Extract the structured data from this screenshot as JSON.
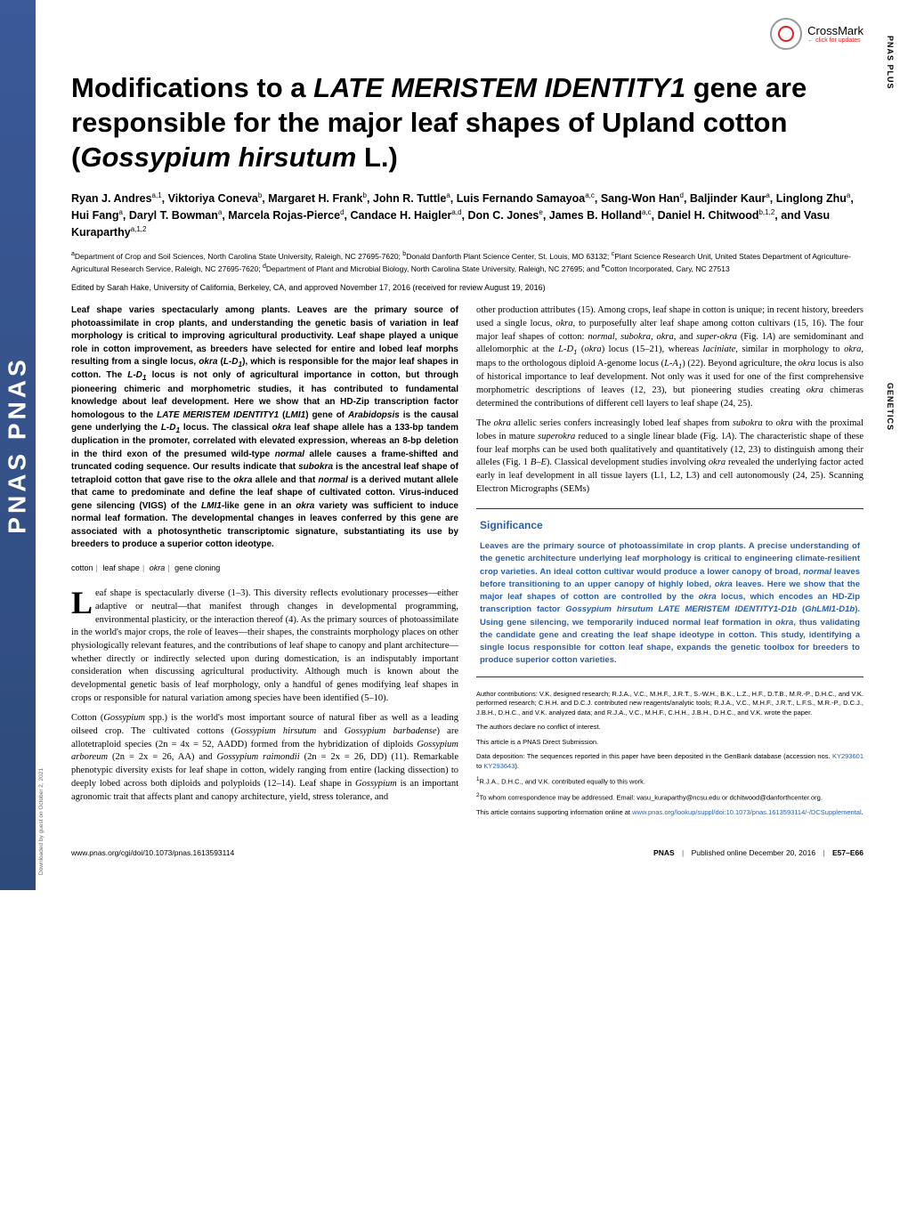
{
  "crossmark": {
    "label": "CrossMark",
    "sub": "← click for updates"
  },
  "vertical_labels": {
    "top": "PNAS PLUS",
    "mid": "GENETICS"
  },
  "sidebar": "PNAS   PNAS",
  "title_html": "Modifications to a <span class='italic'>LATE MERISTEM IDENTITY1</span> gene are responsible for the major leaf shapes of Upland cotton (<span class='italic'>Gossypium hirsutum</span> L.)",
  "authors_html": "Ryan J. Andres<sup>a,1</sup>, Viktoriya Coneva<sup>b</sup>, Margaret H. Frank<sup>b</sup>, John R. Tuttle<sup>a</sup>, Luis Fernando Samayoa<sup>a,c</sup>, Sang-Won Han<sup>d</sup>, Baljinder Kaur<sup>a</sup>, Linglong Zhu<sup>a</sup>, Hui Fang<sup>a</sup>, Daryl T. Bowman<sup>a</sup>, Marcela Rojas-Pierce<sup>d</sup>, Candace H. Haigler<sup>a,d</sup>, Don C. Jones<sup>e</sup>, James B. Holland<sup>a,c</sup>, Daniel H. Chitwood<sup>b,1,2</sup>, and Vasu Kuraparthy<sup>a,1,2</sup>",
  "affiliations_html": "<sup>a</sup>Department of Crop and Soil Sciences, North Carolina State University, Raleigh, NC 27695-7620; <sup>b</sup>Donald Danforth Plant Science Center, St. Louis, MO 63132; <sup>c</sup>Plant Science Research Unit, United States Department of Agriculture-Agricultural Research Service, Raleigh, NC 27695-7620; <sup>d</sup>Department of Plant and Microbial Biology, North Carolina State University, Raleigh, NC 27695; and <sup>e</sup>Cotton Incorporated, Cary, NC 27513",
  "edited": "Edited by Sarah Hake, University of California, Berkeley, CA, and approved November 17, 2016 (received for review August 19, 2016)",
  "abstract_html": "Leaf shape varies spectacularly among plants. Leaves are the primary source of photoassimilate in crop plants, and understanding the genetic basis of variation in leaf morphology is critical to improving agricultural productivity. Leaf shape played a unique role in cotton improvement, as breeders have selected for entire and lobed leaf morphs resulting from a single locus, <span class='italic'>okra</span> (<span class='italic'>L-D<sub>1</sub></span>), which is responsible for the major leaf shapes in cotton. The <span class='italic'>L-D<sub>1</sub></span> locus is not only of agricultural importance in cotton, but through pioneering chimeric and morphometric studies, it has contributed to fundamental knowledge about leaf development. Here we show that an HD-Zip transcription factor homologous to the <span class='italic'>LATE MERISTEM IDENTITY1</span> (<span class='italic'>LMI1</span>) gene of <span class='italic'>Arabidopsis</span> is the causal gene underlying the <span class='italic'>L-D<sub>1</sub></span> locus. The classical <span class='italic'>okra</span> leaf shape allele has a 133-bp tandem duplication in the promoter, correlated with elevated expression, whereas an 8-bp deletion in the third exon of the presumed wild-type <span class='italic'>normal</span> allele causes a frame-shifted and truncated coding sequence. Our results indicate that <span class='italic'>subokra</span> is the ancestral leaf shape of tetraploid cotton that gave rise to the <span class='italic'>okra</span> allele and that <span class='italic'>normal</span> is a derived mutant allele that came to predominate and define the leaf shape of cultivated cotton. Virus-induced gene silencing (VIGS) of the <span class='italic'>LMI1</span>-like gene in an <span class='italic'>okra</span> variety was sufficient to induce normal leaf formation. The developmental changes in leaves conferred by this gene are associated with a photosynthetic transcriptomic signature, substantiating its use by breeders to produce a superior cotton ideotype.",
  "keywords": [
    "cotton",
    "leaf shape",
    "okra",
    "gene cloning"
  ],
  "body_p1_html": "eaf shape is spectacularly diverse (1–3). This diversity reflects evolutionary processes—either adaptive or neutral—that manifest through changes in developmental programming, environmental plasticity, or the interaction thereof (4). As the primary sources of photoassimilate in the world's major crops, the role of leaves—their shapes, the constraints morphology places on other physiologically relevant features, and the contributions of leaf shape to canopy and plant architecture—whether directly or indirectly selected upon during domestication, is an indisputably important consideration when discussing agricultural productivity. Although much is known about the developmental genetic basis of leaf morphology, only a handful of genes modifying leaf shapes in crops or responsible for natural variation among species have been identified (5–10).",
  "body_p2_html": "Cotton (<span class='italic'>Gossypium</span> spp.) is the world's most important source of natural fiber as well as a leading oilseed crop. The cultivated cottons (<span class='italic'>Gossypium hirsutum</span> and <span class='italic'>Gossypium barbadense</span>) are allotetraploid species (2n = 4x = 52, AADD) formed from the hybridization of diploids <span class='italic'>Gossypium arboreum</span> (2n = 2x = 26, AA) and <span class='italic'>Gossypium raimondii</span> (2n = 2x = 26, DD) (11). Remarkable phenotypic diversity exists for leaf shape in cotton, widely ranging from entire (lacking dissection) to deeply lobed across both diploids and polyploids (12–14). Leaf shape in <span class='italic'>Gossypium</span> is an important agronomic trait that affects plant and canopy architecture, yield, stress tolerance, and",
  "body_col2_p1_html": "other production attributes (15). Among crops, leaf shape in cotton is unique; in recent history, breeders used a single locus, <span class='italic'>okra</span>, to purposefully alter leaf shape among cotton cultivars (15, 16). The four major leaf shapes of cotton: <span class='italic'>normal</span>, <span class='italic'>subokra</span>, <span class='italic'>okra</span>, and <span class='italic'>super-okra</span> (Fig. 1<span class='italic'>A</span>) are semidominant and allelomorphic at the <span class='italic'>L-D<sub>1</sub></span> (<span class='italic'>okra</span>) locus (15–21), whereas <span class='italic'>laciniate</span>, similar in morphology to <span class='italic'>okra</span>, maps to the orthologous diploid A-genome locus (<span class='italic'>L-A<sub>1</sub></span>) (22). Beyond agriculture, the <span class='italic'>okra</span> locus is also of historical importance to leaf development. Not only was it used for one of the first comprehensive morphometric descriptions of leaves (12, 23), but pioneering studies creating <span class='italic'>okra</span> chimeras determined the contributions of different cell layers to leaf shape (24, 25).",
  "body_col2_p2_html": "The <span class='italic'>okra</span> allelic series confers increasingly lobed leaf shapes from <span class='italic'>subokra</span> to <span class='italic'>okra</span> with the proximal lobes in mature <span class='italic'>superokra</span> reduced to a single linear blade (Fig. 1<span class='italic'>A</span>). The characteristic shape of these four leaf morphs can be used both qualitatively and quantitatively (12, 23) to distinguish among their alleles (Fig. 1 <span class='italic'>B–E</span>). Classical development studies involving <span class='italic'>okra</span> revealed the underlying factor acted early in leaf development in all tissue layers (L1, L2, L3) and cell autonomously (24, 25). Scanning Electron Micrographs (SEMs)",
  "significance": {
    "title": "Significance",
    "text_html": "Leaves are the primary source of photoassimilate in crop plants. A precise understanding of the genetic architecture underlying leaf morphology is critical to engineering climate-resilient crop varieties. An ideal cotton cultivar would produce a lower canopy of broad, <span class='italic'>normal</span> leaves before transitioning to an upper canopy of highly lobed, <span class='italic'>okra</span> leaves. Here we show that the major leaf shapes of cotton are controlled by the <span class='italic'>okra</span> locus, which encodes an HD-Zip transcription factor <span class='italic'>Gossypium hirsutum LATE MERISTEM IDENTITY1-D1b</span> (<span class='italic'>GhLMI1-D1b</span>). Using gene silencing, we temporarily induced normal leaf formation in <span class='italic'>okra</span>, thus validating the candidate gene and creating the leaf shape ideotype in cotton. This study, identifying a single locus responsible for cotton leaf shape, expands the genetic toolbox for breeders to produce superior cotton varieties."
  },
  "contrib_lines": [
    "Author contributions: V.K. designed research; R.J.A., V.C., M.H.F., J.R.T., S.-W.H., B.K., L.Z., H.F., D.T.B., M.R.-P., D.H.C., and V.K. performed research; C.H.H. and D.C.J. contributed new reagents/analytic tools; R.J.A., V.C., M.H.F., J.R.T., L.F.S., M.R.-P., D.C.J., J.B.H., D.H.C., and V.K. analyzed data; and R.J.A., V.C., M.H.F., C.H.H., J.B.H., D.H.C., and V.K. wrote the paper.",
    "The authors declare no conflict of interest.",
    "This article is a PNAS Direct Submission.",
    "Data deposition: The sequences reported in this paper have been deposited in the GenBank database (accession nos. <a href='#'>KY293601</a> to <a href='#'>KY293643</a>).",
    "<sup>1</sup>R.J.A., D.H.C., and V.K. contributed equally to this work.",
    "<sup>2</sup>To whom correspondence may be addressed. Email: vasu_kuraparthy@ncsu.edu or dchitwood@danforthcenter.org.",
    "This article contains supporting information online at <a href='#'>www.pnas.org/lookup/suppl/doi:10.1073/pnas.1613593114/-/DCSupplemental</a>."
  ],
  "footer": {
    "left": "www.pnas.org/cgi/doi/10.1073/pnas.1613593114",
    "right_parts": [
      "PNAS",
      "Published online December 20, 2016",
      "E57–E66"
    ]
  },
  "downloaded": "Downloaded by guest on October 2, 2021"
}
